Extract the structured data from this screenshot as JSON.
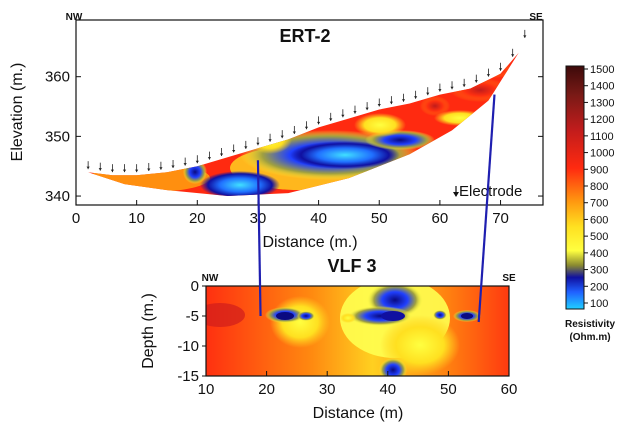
{
  "chart_data": [
    {
      "type": "heatmap",
      "title": "ERT-2",
      "xlabel": "Distance (m.)",
      "ylabel": "Elevation (m.)",
      "xlim": [
        0,
        77
      ],
      "ylim": [
        338.5,
        369.5
      ],
      "x_ticks": [
        "0",
        "10",
        "20",
        "30",
        "40",
        "50",
        "60",
        "70"
      ],
      "y_ticks": [
        "340",
        "350",
        "360"
      ],
      "direction_left": "NW",
      "direction_right": "SE",
      "annotation": "Electrode",
      "surface_profile": [
        [
          2,
          344
        ],
        [
          6,
          343.5
        ],
        [
          10,
          343.5
        ],
        [
          15,
          344
        ],
        [
          20,
          345
        ],
        [
          25,
          346.5
        ],
        [
          30,
          348
        ],
        [
          35,
          349.5
        ],
        [
          40,
          351.5
        ],
        [
          45,
          353
        ],
        [
          50,
          354.5
        ],
        [
          55,
          355.5
        ],
        [
          60,
          357
        ],
        [
          65,
          358
        ],
        [
          70,
          360.5
        ],
        [
          73,
          364
        ]
      ],
      "bottom_profile": [
        [
          2,
          344
        ],
        [
          8,
          342
        ],
        [
          15,
          341
        ],
        [
          25,
          340
        ],
        [
          35,
          340.5
        ],
        [
          45,
          343
        ],
        [
          55,
          347
        ],
        [
          62,
          351
        ],
        [
          68,
          356
        ],
        [
          73,
          364
        ]
      ],
      "anomalies": [
        {
          "type": "conductive",
          "x": 25,
          "y": 343,
          "rx": 5,
          "ry": 2
        },
        {
          "type": "conductive",
          "x": 44,
          "y": 348,
          "rx": 10,
          "ry": 3
        },
        {
          "type": "resistive",
          "x": 37,
          "y": 346,
          "rx": 5,
          "ry": 3
        },
        {
          "type": "resistive",
          "x": 58,
          "y": 355,
          "rx": 3,
          "ry": 2
        }
      ]
    },
    {
      "type": "heatmap",
      "title": "VLF 3",
      "xlabel": "Distance (m)",
      "ylabel": "Depth (m.)",
      "xlim": [
        10,
        60
      ],
      "ylim": [
        -15,
        0
      ],
      "x_ticks": [
        "10",
        "20",
        "30",
        "40",
        "50",
        "60"
      ],
      "y_ticks": [
        "0",
        "-5",
        "-10",
        "-15"
      ],
      "direction_left": "NW",
      "direction_right": "SE",
      "anomalies": [
        {
          "type": "conductive",
          "x": 24,
          "y": -5,
          "rx": 3,
          "ry": 1
        },
        {
          "type": "conductive",
          "x": 40,
          "y": -5,
          "rx": 4,
          "ry": 3
        },
        {
          "type": "conductive",
          "x": 52,
          "y": -5,
          "rx": 2,
          "ry": 1
        },
        {
          "type": "conductive",
          "x": 40,
          "y": -14,
          "rx": 1.5,
          "ry": 1.5
        }
      ]
    }
  ],
  "correlation_lines": [
    {
      "ert_x": 30,
      "ert_y": 346,
      "vlf_x": 19,
      "vlf_y": -5
    },
    {
      "ert_x": 69,
      "ert_y": 357,
      "vlf_x": 55,
      "vlf_y": -6
    }
  ],
  "colorbar": {
    "ticks": [
      "1500",
      "1400",
      "1300",
      "1200",
      "1100",
      "1000",
      "900",
      "800",
      "700",
      "600",
      "500",
      "400",
      "300",
      "200",
      "100"
    ],
    "label_line1": "Resistivity",
    "label_line2": "(Ohm.m)",
    "stops": [
      "#3d0a0a",
      "#7a1a16",
      "#b01e1e",
      "#e02020",
      "#ff5a10",
      "#ff9a10",
      "#ffd020",
      "#ffff40",
      "#c0c020",
      "#1010a0",
      "#2060ff",
      "#20c0ff"
    ]
  }
}
